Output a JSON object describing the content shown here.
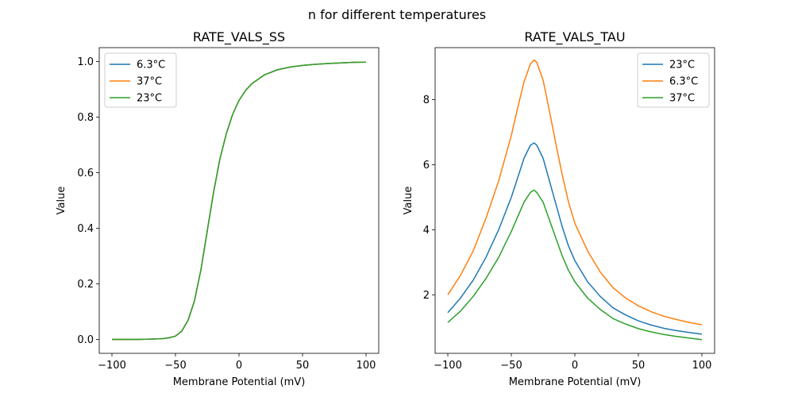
{
  "figure": {
    "suptitle": "n for different temperatures"
  },
  "colors": {
    "6.3°C": "#1f77b4",
    "37°C": "#ff7f0e",
    "23°C": "#2ca02c",
    "blue": "#1f77b4",
    "orange": "#ff7f0e",
    "green": "#2ca02c"
  },
  "chart_data": [
    {
      "type": "line",
      "title": "RATE_VALS_SS",
      "xlabel": "Membrane Potential (mV)",
      "ylabel": "Value",
      "xlim": [
        -110,
        110
      ],
      "ylim": [
        -0.05,
        1.05
      ],
      "xticks": [
        -100,
        -50,
        0,
        50,
        100
      ],
      "xtick_labels": [
        "−100",
        "−50",
        "0",
        "50",
        "100"
      ],
      "yticks": [
        0.0,
        0.2,
        0.4,
        0.6,
        0.8,
        1.0
      ],
      "ytick_labels": [
        "0.0",
        "0.2",
        "0.4",
        "0.6",
        "0.8",
        "1.0"
      ],
      "legend": "upper left",
      "x": [
        -100,
        -90,
        -80,
        -70,
        -60,
        -55,
        -50,
        -45,
        -40,
        -35,
        -30,
        -25,
        -20,
        -15,
        -10,
        -5,
        0,
        5,
        10,
        20,
        30,
        40,
        50,
        60,
        70,
        80,
        90,
        100
      ],
      "series": [
        {
          "name": "6.3°C",
          "color": "#1f77b4",
          "values": [
            0.0,
            0.0,
            0.0,
            0.001,
            0.003,
            0.006,
            0.012,
            0.03,
            0.07,
            0.14,
            0.25,
            0.39,
            0.53,
            0.65,
            0.74,
            0.81,
            0.86,
            0.895,
            0.92,
            0.952,
            0.97,
            0.98,
            0.986,
            0.99,
            0.993,
            0.995,
            0.997,
            0.998
          ]
        },
        {
          "name": "37°C",
          "color": "#ff7f0e",
          "values": [
            0.0,
            0.0,
            0.0,
            0.001,
            0.003,
            0.006,
            0.012,
            0.03,
            0.07,
            0.14,
            0.25,
            0.39,
            0.53,
            0.65,
            0.74,
            0.81,
            0.86,
            0.895,
            0.92,
            0.952,
            0.97,
            0.98,
            0.986,
            0.99,
            0.993,
            0.995,
            0.997,
            0.998
          ]
        },
        {
          "name": "23°C",
          "color": "#2ca02c",
          "values": [
            0.0,
            0.0,
            0.0,
            0.001,
            0.003,
            0.006,
            0.012,
            0.03,
            0.07,
            0.14,
            0.25,
            0.39,
            0.53,
            0.65,
            0.74,
            0.81,
            0.86,
            0.895,
            0.92,
            0.952,
            0.97,
            0.98,
            0.986,
            0.99,
            0.993,
            0.995,
            0.997,
            0.998
          ]
        }
      ]
    },
    {
      "type": "line",
      "title": "RATE_VALS_TAU",
      "xlabel": "Membrane Potential (mV)",
      "ylabel": "Value",
      "xlim": [
        -110,
        110
      ],
      "ylim": [
        0.2,
        9.6
      ],
      "xticks": [
        -100,
        -50,
        0,
        50,
        100
      ],
      "xtick_labels": [
        "−100",
        "−50",
        "0",
        "50",
        "100"
      ],
      "yticks": [
        2,
        4,
        6,
        8
      ],
      "ytick_labels": [
        "2",
        "4",
        "6",
        "8"
      ],
      "legend": "upper right",
      "x": [
        -100,
        -90,
        -80,
        -70,
        -60,
        -50,
        -45,
        -40,
        -35,
        -32,
        -30,
        -25,
        -20,
        -15,
        -10,
        -5,
        0,
        10,
        20,
        30,
        40,
        50,
        60,
        70,
        80,
        90,
        100
      ],
      "series": [
        {
          "name": "23°C",
          "color": "#1f77b4",
          "values": [
            1.45,
            1.9,
            2.45,
            3.15,
            4.0,
            5.0,
            5.6,
            6.2,
            6.6,
            6.67,
            6.6,
            6.2,
            5.5,
            4.8,
            4.1,
            3.5,
            3.05,
            2.4,
            1.95,
            1.6,
            1.38,
            1.2,
            1.07,
            0.97,
            0.9,
            0.84,
            0.79
          ]
        },
        {
          "name": "6.3°C",
          "color": "#ff7f0e",
          "values": [
            2.0,
            2.6,
            3.35,
            4.35,
            5.5,
            6.9,
            7.75,
            8.55,
            9.1,
            9.22,
            9.15,
            8.6,
            7.65,
            6.65,
            5.7,
            4.85,
            4.2,
            3.35,
            2.7,
            2.22,
            1.9,
            1.66,
            1.48,
            1.34,
            1.24,
            1.15,
            1.08
          ]
        },
        {
          "name": "37°C",
          "color": "#2ca02c",
          "values": [
            1.15,
            1.5,
            1.95,
            2.5,
            3.15,
            3.95,
            4.4,
            4.85,
            5.15,
            5.22,
            5.15,
            4.85,
            4.3,
            3.75,
            3.2,
            2.75,
            2.4,
            1.9,
            1.55,
            1.27,
            1.1,
            0.96,
            0.86,
            0.78,
            0.72,
            0.67,
            0.62
          ]
        }
      ]
    }
  ]
}
